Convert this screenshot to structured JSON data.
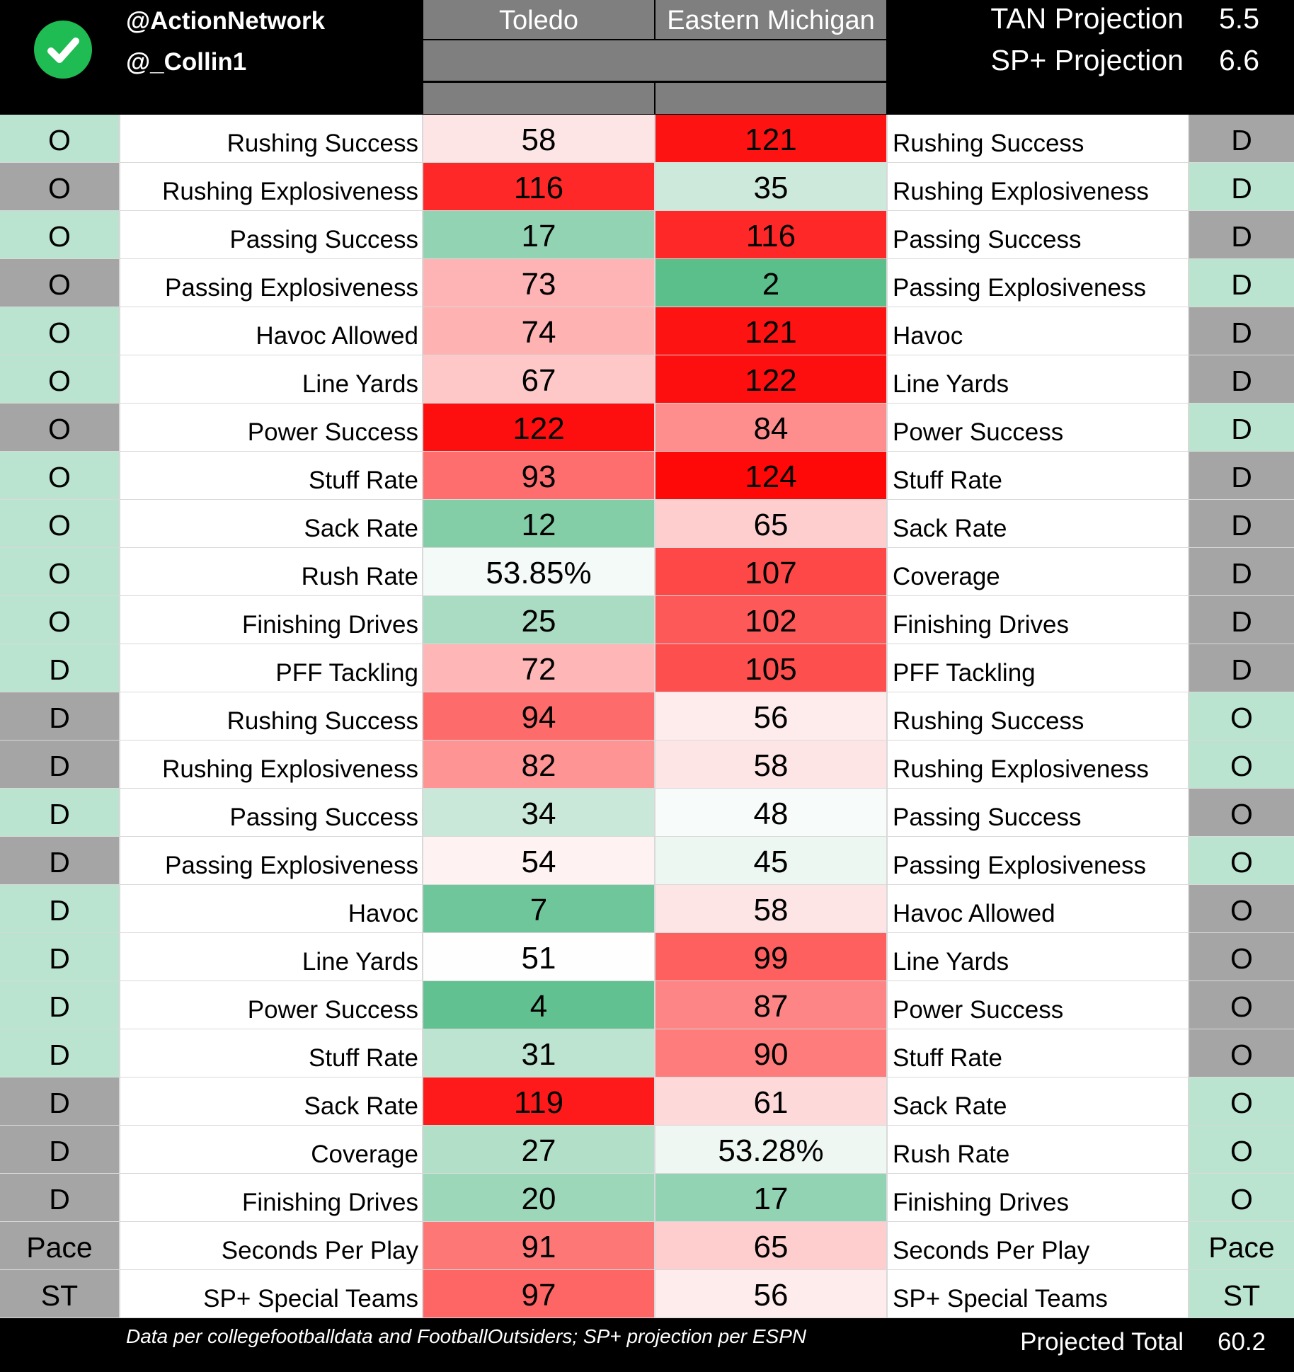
{
  "header": {
    "handles": [
      "@ActionNetwork",
      "@_Collin1"
    ],
    "teams": [
      "Toledo",
      "Eastern Michigan"
    ],
    "projections": [
      {
        "label": "TAN Projection",
        "value": "5.5"
      },
      {
        "label": "SP+ Projection",
        "value": "6.6"
      }
    ]
  },
  "colors": {
    "side_green": "#bae4d0",
    "side_gray": "#a5a5a5",
    "header_gray": "#7f7f7f",
    "logo_green": "#1fbb53"
  },
  "rows": [
    {
      "side_l": "O",
      "side_l_color": "green",
      "label_l": "Rushing Success",
      "v1": "58",
      "v1_color": "#fde5e5",
      "v2": "121",
      "v2_color": "#fe1313",
      "label_r": "Rushing Success",
      "side_r": "D",
      "side_r_color": "gray"
    },
    {
      "side_l": "O",
      "side_l_color": "gray",
      "label_l": "Rushing Explosiveness",
      "v1": "116",
      "v1_color": "#fe2828",
      "v2": "35",
      "v2_color": "#cde9dc",
      "label_r": "Rushing Explosiveness",
      "side_r": "D",
      "side_r_color": "green"
    },
    {
      "side_l": "O",
      "side_l_color": "green",
      "label_l": "Passing Success",
      "v1": "17",
      "v1_color": "#92d3b3",
      "v2": "116",
      "v2_color": "#fe2828",
      "label_r": "Passing Success",
      "side_r": "D",
      "side_r_color": "gray"
    },
    {
      "side_l": "O",
      "side_l_color": "gray",
      "label_l": "Passing Explosiveness",
      "v1": "73",
      "v1_color": "#feb4b4",
      "v2": "2",
      "v2_color": "#5bbf8b",
      "label_r": "Passing Explosiveness",
      "side_r": "D",
      "side_r_color": "green"
    },
    {
      "side_l": "O",
      "side_l_color": "green",
      "label_l": "Havoc Allowed",
      "v1": "74",
      "v1_color": "#feb2b2",
      "v2": "121",
      "v2_color": "#fe1313",
      "label_r": "Havoc",
      "side_r": "D",
      "side_r_color": "gray"
    },
    {
      "side_l": "O",
      "side_l_color": "green",
      "label_l": "Line Yards",
      "v1": "67",
      "v1_color": "#fec8c8",
      "v2": "122",
      "v2_color": "#fe0f0f",
      "label_r": "Line Yards",
      "side_r": "D",
      "side_r_color": "gray"
    },
    {
      "side_l": "O",
      "side_l_color": "gray",
      "label_l": "Power Success",
      "v1": "122",
      "v1_color": "#fe0f0f",
      "v2": "84",
      "v2_color": "#fe8e8e",
      "label_r": "Power Success",
      "side_r": "D",
      "side_r_color": "green"
    },
    {
      "side_l": "O",
      "side_l_color": "green",
      "label_l": "Stuff Rate",
      "v1": "93",
      "v1_color": "#fe6e6e",
      "v2": "124",
      "v2_color": "#fe0808",
      "label_r": "Stuff Rate",
      "side_r": "D",
      "side_r_color": "gray"
    },
    {
      "side_l": "O",
      "side_l_color": "green",
      "label_l": "Sack Rate",
      "v1": "12",
      "v1_color": "#83cda7",
      "v2": "65",
      "v2_color": "#fecece",
      "label_r": "Sack Rate",
      "side_r": "D",
      "side_r_color": "gray"
    },
    {
      "side_l": "O",
      "side_l_color": "green",
      "label_l": "Rush Rate",
      "v1": "53.85%",
      "v1_color": "#f4faf7",
      "v2": "107",
      "v2_color": "#fe4848",
      "label_r": "Coverage",
      "side_r": "D",
      "side_r_color": "gray"
    },
    {
      "side_l": "O",
      "side_l_color": "green",
      "label_l": "Finishing Drives",
      "v1": "25",
      "v1_color": "#a9dcc3",
      "v2": "102",
      "v2_color": "#fe5959",
      "label_r": "Finishing Drives",
      "side_r": "D",
      "side_r_color": "gray"
    },
    {
      "side_l": "D",
      "side_l_color": "green",
      "label_l": "PFF Tackling",
      "v1": "72",
      "v1_color": "#feb6b6",
      "v2": "105",
      "v2_color": "#fe4f4f",
      "label_r": "PFF Tackling",
      "side_r": "D",
      "side_r_color": "gray"
    },
    {
      "side_l": "D",
      "side_l_color": "gray",
      "label_l": "Rushing Success",
      "v1": "94",
      "v1_color": "#fe6b6b",
      "v2": "56",
      "v2_color": "#feebeb",
      "label_r": "Rushing Success",
      "side_r": "O",
      "side_r_color": "green"
    },
    {
      "side_l": "D",
      "side_l_color": "gray",
      "label_l": "Rushing Explosiveness",
      "v1": "82",
      "v1_color": "#fe9494",
      "v2": "58",
      "v2_color": "#fee5e5",
      "label_r": "Rushing Explosiveness",
      "side_r": "O",
      "side_r_color": "green"
    },
    {
      "side_l": "D",
      "side_l_color": "green",
      "label_l": "Passing Success",
      "v1": "34",
      "v1_color": "#c9e8d9",
      "v2": "48",
      "v2_color": "#f7fbf9",
      "label_r": "Passing Success",
      "side_r": "O",
      "side_r_color": "gray"
    },
    {
      "side_l": "D",
      "side_l_color": "gray",
      "label_l": "Passing Explosiveness",
      "v1": "54",
      "v1_color": "#fef2f2",
      "v2": "45",
      "v2_color": "#edf7f2",
      "label_r": "Passing Explosiveness",
      "side_r": "O",
      "side_r_color": "green"
    },
    {
      "side_l": "D",
      "side_l_color": "green",
      "label_l": "Havoc",
      "v1": "7",
      "v1_color": "#6ec69a",
      "v2": "58",
      "v2_color": "#fee5e5",
      "label_r": "Havoc Allowed",
      "side_r": "O",
      "side_r_color": "gray"
    },
    {
      "side_l": "D",
      "side_l_color": "green",
      "label_l": "Line Yards",
      "v1": "51",
      "v1_color": "#fefefe",
      "v2": "99",
      "v2_color": "#fe5f5f",
      "label_r": "Line Yards",
      "side_r": "O",
      "side_r_color": "gray"
    },
    {
      "side_l": "D",
      "side_l_color": "green",
      "label_l": "Power Success",
      "v1": "4",
      "v1_color": "#62c190",
      "v2": "87",
      "v2_color": "#fe8585",
      "label_r": "Power Success",
      "side_r": "O",
      "side_r_color": "gray"
    },
    {
      "side_l": "D",
      "side_l_color": "green",
      "label_l": "Stuff Rate",
      "v1": "31",
      "v1_color": "#bde3d1",
      "v2": "90",
      "v2_color": "#fe7c7c",
      "label_r": "Stuff Rate",
      "side_r": "O",
      "side_r_color": "gray"
    },
    {
      "side_l": "D",
      "side_l_color": "gray",
      "label_l": "Sack Rate",
      "v1": "119",
      "v1_color": "#fe1a1a",
      "v2": "61",
      "v2_color": "#fed9d9",
      "label_r": "Sack Rate",
      "side_r": "O",
      "side_r_color": "green"
    },
    {
      "side_l": "D",
      "side_l_color": "gray",
      "label_l": "Coverage",
      "v1": "27",
      "v1_color": "#b1dfc8",
      "v2": "53.28%",
      "v2_color": "#eff7f3",
      "label_r": "Rush Rate",
      "side_r": "O",
      "side_r_color": "green"
    },
    {
      "side_l": "D",
      "side_l_color": "gray",
      "label_l": "Finishing Drives",
      "v1": "20",
      "v1_color": "#9dd7ba",
      "v2": "17",
      "v2_color": "#92d3b3",
      "label_r": "Finishing Drives",
      "side_r": "O",
      "side_r_color": "green"
    },
    {
      "side_l": "Pace",
      "side_l_color": "gray",
      "label_l": "Seconds Per Play",
      "v1": "91",
      "v1_color": "#fe7777",
      "v2": "65",
      "v2_color": "#fecece",
      "label_r": "Seconds Per Play",
      "side_r": "Pace",
      "side_r_color": "green"
    },
    {
      "side_l": "ST",
      "side_l_color": "gray",
      "label_l": "SP+ Special Teams",
      "v1": "97",
      "v1_color": "#fe6565",
      "v2": "56",
      "v2_color": "#feebeb",
      "label_r": "SP+ Special Teams",
      "side_r": "ST",
      "side_r_color": "green"
    }
  ],
  "footer": {
    "source_note": "Data per collegefootballdata and FootballOutsiders; SP+ projection per ESPN",
    "total_label": "Projected Total",
    "total_value": "60.2"
  }
}
